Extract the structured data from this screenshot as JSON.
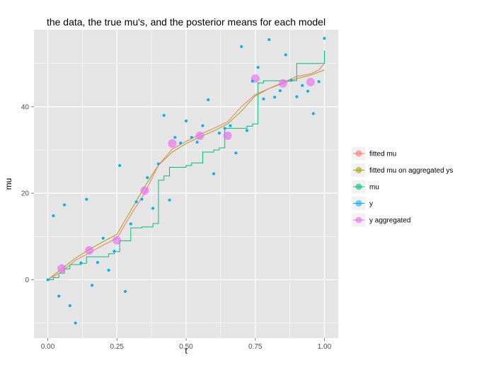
{
  "chart_data": {
    "type": "scatter",
    "title": "the data, the true mu's, and the posterior means for each model",
    "xlabel": "t",
    "ylabel": "mu",
    "xlim": [
      -0.05,
      1.05
    ],
    "ylim": [
      -13.5,
      57.8
    ],
    "x_ticks": [
      0,
      0.25,
      0.5,
      0.75,
      1
    ],
    "x_tick_labels": [
      "0.00",
      "0.25",
      "0.50",
      "0.75",
      "1.00"
    ],
    "y_ticks": [
      0,
      20,
      40
    ],
    "y_tick_labels": [
      "0",
      "20",
      "40"
    ],
    "grid": true,
    "legend_position": "right",
    "colors": {
      "fitted_mu": "#F8766D",
      "fitted_mu_agg": "#A3A500",
      "mu": "#00BF7D",
      "y": "#00B0F6",
      "y_aggregated": "#E76BF3",
      "panel_bg": "#E5E5E5",
      "grid": "#FFFFFF"
    },
    "series": [
      {
        "name": "fitted mu",
        "kind": "line",
        "color": "#F8766D",
        "x": [
          0,
          0.05,
          0.1,
          0.15,
          0.2,
          0.25,
          0.3,
          0.35,
          0.4,
          0.45,
          0.5,
          0.55,
          0.6,
          0.65,
          0.7,
          0.75,
          0.8,
          0.85,
          0.9,
          0.95,
          0.98,
          1
        ],
        "y": [
          0,
          1.8,
          4.5,
          6.2,
          8,
          9.6,
          15,
          20,
          26.5,
          30.2,
          32,
          33.6,
          35,
          36.5,
          40,
          42.8,
          44.2,
          45.6,
          47,
          47.6,
          48.5,
          50
        ]
      },
      {
        "name": "fitted mu on aggregated ys",
        "kind": "line",
        "color": "#A3A500",
        "x": [
          0,
          0.05,
          0.1,
          0.15,
          0.2,
          0.25,
          0.3,
          0.35,
          0.4,
          0.45,
          0.5,
          0.55,
          0.6,
          0.65,
          0.7,
          0.75,
          0.8,
          0.85,
          0.9,
          0.95,
          0.98,
          1
        ],
        "y": [
          0,
          2.5,
          5,
          7,
          8.8,
          10.5,
          16,
          21.5,
          26.5,
          29.5,
          31.5,
          33,
          34.4,
          36,
          39,
          42.5,
          44.2,
          45.4,
          46.5,
          47.3,
          48,
          48.5
        ]
      },
      {
        "name": "mu",
        "kind": "step",
        "color": "#00BF7D",
        "x": [
          0,
          0.02,
          0.04,
          0.06,
          0.08,
          0.1,
          0.12,
          0.14,
          0.16,
          0.18,
          0.2,
          0.22,
          0.24,
          0.26,
          0.28,
          0.3,
          0.32,
          0.34,
          0.36,
          0.38,
          0.4,
          0.42,
          0.44,
          0.46,
          0.48,
          0.5,
          0.52,
          0.54,
          0.56,
          0.58,
          0.6,
          0.62,
          0.64,
          0.66,
          0.68,
          0.7,
          0.72,
          0.74,
          0.76,
          0.78,
          0.8,
          0.82,
          0.84,
          0.86,
          0.88,
          0.9,
          0.92,
          0.94,
          0.96,
          0.98,
          1
        ],
        "y": [
          0,
          0.5,
          1.5,
          2.5,
          3.5,
          3.5,
          3.8,
          5.3,
          5.3,
          5.3,
          5.3,
          6,
          6.5,
          9,
          9,
          12,
          12,
          12.2,
          12.2,
          13,
          23,
          24,
          26,
          26,
          26,
          26.4,
          27,
          27,
          29.5,
          29.5,
          30,
          30.5,
          35,
          35,
          35,
          35,
          35.5,
          36,
          45.5,
          46,
          46,
          46,
          46,
          46,
          46,
          50,
          50,
          50,
          50,
          50,
          53
        ]
      },
      {
        "name": "y",
        "kind": "points",
        "color": "#00B0F6",
        "x": [
          0,
          0.02,
          0.04,
          0.06,
          0.08,
          0.1,
          0.12,
          0.14,
          0.16,
          0.18,
          0.2,
          0.22,
          0.24,
          0.26,
          0.28,
          0.3,
          0.32,
          0.34,
          0.36,
          0.38,
          0.4,
          0.42,
          0.44,
          0.46,
          0.48,
          0.5,
          0.52,
          0.54,
          0.56,
          0.58,
          0.6,
          0.62,
          0.64,
          0.66,
          0.68,
          0.7,
          0.72,
          0.74,
          0.76,
          0.78,
          0.8,
          0.82,
          0.84,
          0.86,
          0.88,
          0.9,
          0.92,
          0.94,
          0.96,
          0.98,
          1
        ],
        "y": [
          0,
          14.8,
          -3.8,
          17.3,
          -6,
          -10,
          3.9,
          18.6,
          -1.3,
          4,
          9.6,
          2.2,
          6.6,
          26.4,
          -2.7,
          12.9,
          18,
          18.6,
          23.6,
          16.5,
          26.8,
          38,
          18.4,
          32.9,
          31.6,
          36.7,
          32.9,
          31.8,
          35.6,
          41.6,
          24.5,
          33.9,
          35,
          35.6,
          29.3,
          53.9,
          34.5,
          45.9,
          49.1,
          41.8,
          55.5,
          42.2,
          43.7,
          52,
          46.1,
          42.3,
          44.9,
          43.6,
          38.4,
          45.8,
          55.8
        ]
      },
      {
        "name": "y aggregated",
        "kind": "points",
        "color": "#E76BF3",
        "x": [
          0.05,
          0.15,
          0.25,
          0.35,
          0.45,
          0.55,
          0.65,
          0.75,
          0.85,
          0.95
        ],
        "y": [
          2.6,
          6.8,
          9.1,
          20.6,
          31.5,
          33.3,
          33.3,
          46.5,
          45.4,
          45.7
        ]
      }
    ]
  },
  "legend": {
    "items": [
      {
        "label": "fitted mu",
        "color": "#F8766D"
      },
      {
        "label": "fitted mu on aggregated ys",
        "color": "#A3A500"
      },
      {
        "label": "mu",
        "color": "#00BF7D"
      },
      {
        "label": "y",
        "color": "#00B0F6"
      },
      {
        "label": "y aggregated",
        "color": "#E76BF3"
      }
    ]
  }
}
